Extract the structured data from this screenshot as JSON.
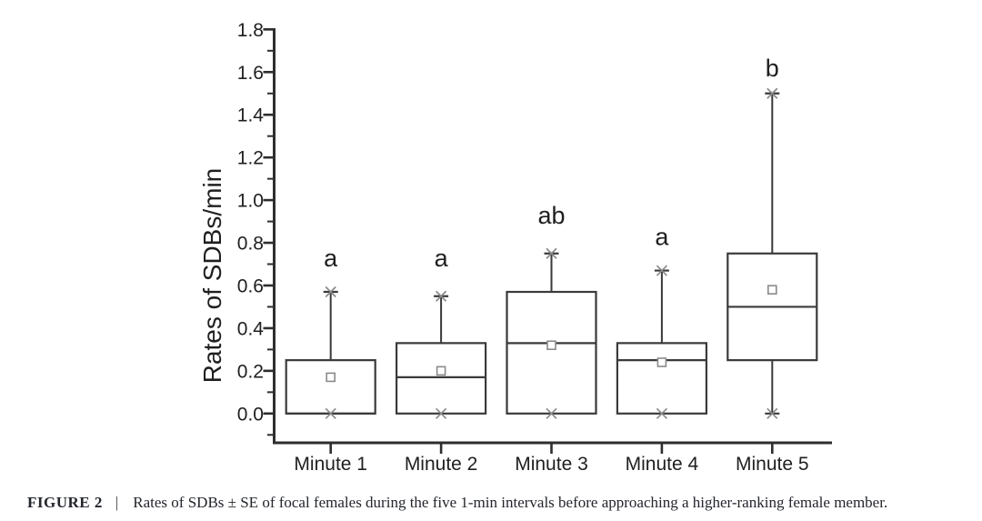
{
  "figure": {
    "caption_label": "FIGURE 2",
    "caption_separator": "|",
    "caption_text": "Rates of SDBs ± SE of focal females during the five 1-min intervals before approaching a higher-ranking female member."
  },
  "chart_data": {
    "type": "boxplot",
    "title": "",
    "xlabel": "",
    "ylabel": "Rates of SDBs/min",
    "ylim": [
      0,
      1.8
    ],
    "y_tick_labels": [
      "0.0",
      "0.2",
      "0.4",
      "0.6",
      "0.8",
      "1.0",
      "1.2",
      "1.4",
      "1.6",
      "1.8"
    ],
    "y_minor_tick_step": 0.1,
    "grid": false,
    "legend": null,
    "categories": [
      "Minute 1",
      "Minute 2",
      "Minute 3",
      "Minute 4",
      "Minute 5"
    ],
    "series": [
      {
        "category": "Minute 1",
        "q1": 0.0,
        "median": 0.0,
        "q3": 0.25,
        "whisker_low": 0.0,
        "whisker_high": 0.57,
        "mean": 0.17,
        "sig_letter": "a",
        "sig_letter_y": 0.69
      },
      {
        "category": "Minute 2",
        "q1": 0.0,
        "median": 0.17,
        "q3": 0.33,
        "whisker_low": 0.0,
        "whisker_high": 0.55,
        "mean": 0.2,
        "sig_letter": "a",
        "sig_letter_y": 0.69
      },
      {
        "category": "Minute 3",
        "q1": 0.0,
        "median": 0.33,
        "q3": 0.57,
        "whisker_low": 0.0,
        "whisker_high": 0.75,
        "mean": 0.32,
        "sig_letter": "ab",
        "sig_letter_y": 0.89
      },
      {
        "category": "Minute 4",
        "q1": 0.0,
        "median": 0.25,
        "q3": 0.33,
        "whisker_low": 0.0,
        "whisker_high": 0.67,
        "mean": 0.24,
        "sig_letter": "a",
        "sig_letter_y": 0.79
      },
      {
        "category": "Minute 5",
        "q1": 0.25,
        "median": 0.5,
        "q3": 0.75,
        "whisker_low": 0.0,
        "whisker_high": 1.5,
        "mean": 0.58,
        "sig_letter": "b",
        "sig_letter_y": 1.58
      }
    ],
    "marker_notes": {
      "mean_marker": "open-square",
      "zero_marker": "x-cross",
      "whisker_cap": "line-with-x-star"
    }
  },
  "colors": {
    "background": "#ffffff",
    "axis": "#2e2e2e",
    "box": "#3a3a3a",
    "marker": "#8a8a8a",
    "text": "#1f1f1f",
    "caption": "#23262c"
  }
}
